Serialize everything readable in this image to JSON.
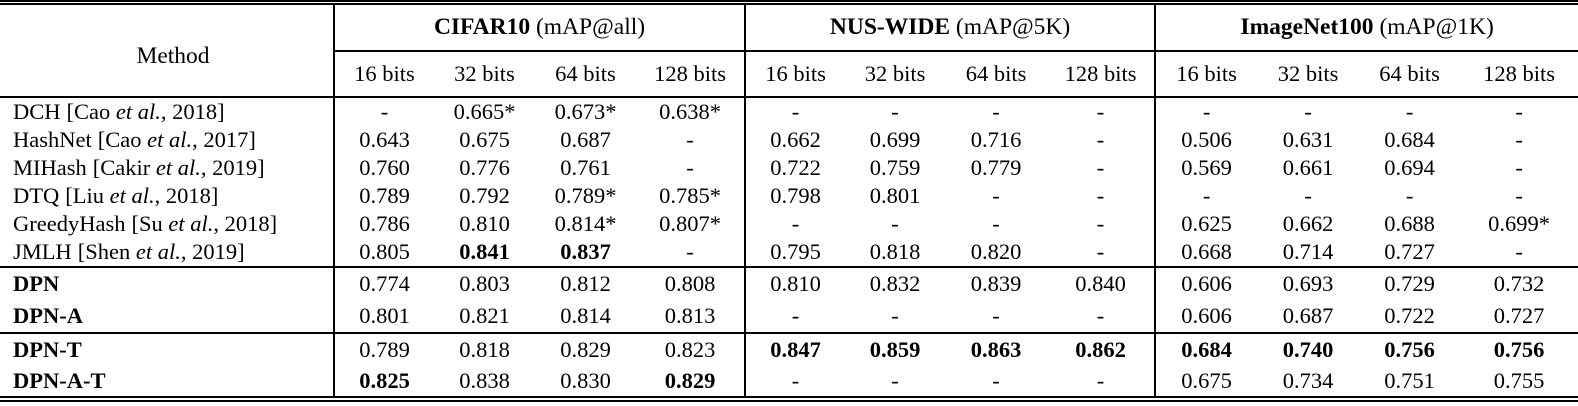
{
  "table": {
    "method_header": "Method",
    "groups": [
      {
        "dataset": "CIFAR10",
        "metric": " (mAP@all)"
      },
      {
        "dataset": "NUS-WIDE",
        "metric": " (mAP@5K)"
      },
      {
        "dataset": "ImageNet100",
        "metric": " (mAP@1K)"
      }
    ],
    "bit_labels": [
      "16 bits",
      "32 bits",
      "64 bits",
      "128 bits"
    ],
    "sections": [
      {
        "rows": [
          {
            "method_name": "DCH",
            "method_bold": false,
            "cite_open": "[Cao ",
            "cite_etal": "et al.",
            "cite_close": ", 2018]",
            "cells": [
              {
                "t": "-"
              },
              {
                "t": "0.665*"
              },
              {
                "t": "0.673*"
              },
              {
                "t": "0.638*"
              },
              {
                "t": "-"
              },
              {
                "t": "-"
              },
              {
                "t": "-"
              },
              {
                "t": "-"
              },
              {
                "t": "-"
              },
              {
                "t": "-"
              },
              {
                "t": "-"
              },
              {
                "t": "-"
              }
            ]
          },
          {
            "method_name": "HashNet",
            "method_bold": false,
            "cite_open": "[Cao ",
            "cite_etal": "et al.",
            "cite_close": ", 2017]",
            "cells": [
              {
                "t": "0.643"
              },
              {
                "t": "0.675"
              },
              {
                "t": "0.687"
              },
              {
                "t": "-"
              },
              {
                "t": "0.662"
              },
              {
                "t": "0.699"
              },
              {
                "t": "0.716"
              },
              {
                "t": "-"
              },
              {
                "t": "0.506"
              },
              {
                "t": "0.631"
              },
              {
                "t": "0.684"
              },
              {
                "t": "-"
              }
            ]
          },
          {
            "method_name": "MIHash",
            "method_bold": false,
            "cite_open": "[Cakir ",
            "cite_etal": "et al.",
            "cite_close": ", 2019]",
            "cells": [
              {
                "t": "0.760"
              },
              {
                "t": "0.776"
              },
              {
                "t": "0.761"
              },
              {
                "t": "-"
              },
              {
                "t": "0.722"
              },
              {
                "t": "0.759"
              },
              {
                "t": "0.779"
              },
              {
                "t": "-"
              },
              {
                "t": "0.569"
              },
              {
                "t": "0.661"
              },
              {
                "t": "0.694"
              },
              {
                "t": "-"
              }
            ]
          },
          {
            "method_name": "DTQ",
            "method_bold": false,
            "cite_open": "[Liu ",
            "cite_etal": "et al.",
            "cite_close": ", 2018]",
            "cells": [
              {
                "t": "0.789"
              },
              {
                "t": "0.792"
              },
              {
                "t": "0.789*"
              },
              {
                "t": "0.785*"
              },
              {
                "t": "0.798"
              },
              {
                "t": "0.801"
              },
              {
                "t": "-"
              },
              {
                "t": "-"
              },
              {
                "t": "-"
              },
              {
                "t": "-"
              },
              {
                "t": "-"
              },
              {
                "t": "-"
              }
            ]
          },
          {
            "method_name": "GreedyHash",
            "method_bold": false,
            "cite_open": "[Su ",
            "cite_etal": "et al.",
            "cite_close": ", 2018]",
            "cells": [
              {
                "t": "0.786"
              },
              {
                "t": "0.810"
              },
              {
                "t": "0.814*"
              },
              {
                "t": "0.807*"
              },
              {
                "t": "-"
              },
              {
                "t": "-"
              },
              {
                "t": "-"
              },
              {
                "t": "-"
              },
              {
                "t": "0.625"
              },
              {
                "t": "0.662"
              },
              {
                "t": "0.688"
              },
              {
                "t": "0.699*"
              }
            ]
          },
          {
            "method_name": "JMLH",
            "method_bold": false,
            "cite_open": "[Shen ",
            "cite_etal": "et al.",
            "cite_close": ", 2019]",
            "cells": [
              {
                "t": "0.805"
              },
              {
                "t": "0.841",
                "b": true
              },
              {
                "t": "0.837",
                "b": true
              },
              {
                "t": "-"
              },
              {
                "t": "0.795"
              },
              {
                "t": "0.818"
              },
              {
                "t": "0.820"
              },
              {
                "t": "-"
              },
              {
                "t": "0.668"
              },
              {
                "t": "0.714"
              },
              {
                "t": "0.727"
              },
              {
                "t": "-"
              }
            ]
          }
        ]
      },
      {
        "rows": [
          {
            "method_name": "DPN",
            "method_bold": true,
            "cite_open": "",
            "cite_etal": "",
            "cite_close": "",
            "cells": [
              {
                "t": "0.774"
              },
              {
                "t": "0.803"
              },
              {
                "t": "0.812"
              },
              {
                "t": "0.808"
              },
              {
                "t": "0.810"
              },
              {
                "t": "0.832"
              },
              {
                "t": "0.839"
              },
              {
                "t": "0.840"
              },
              {
                "t": "0.606"
              },
              {
                "t": "0.693"
              },
              {
                "t": "0.729"
              },
              {
                "t": "0.732"
              }
            ]
          },
          {
            "method_name": "DPN-A",
            "method_bold": true,
            "cite_open": "",
            "cite_etal": "",
            "cite_close": "",
            "cells": [
              {
                "t": "0.801"
              },
              {
                "t": "0.821"
              },
              {
                "t": "0.814"
              },
              {
                "t": "0.813"
              },
              {
                "t": "-"
              },
              {
                "t": "-"
              },
              {
                "t": "-"
              },
              {
                "t": "-"
              },
              {
                "t": "0.606"
              },
              {
                "t": "0.687"
              },
              {
                "t": "0.722"
              },
              {
                "t": "0.727"
              }
            ]
          }
        ]
      },
      {
        "rows": [
          {
            "method_name": "DPN-T",
            "method_bold": true,
            "cite_open": "",
            "cite_etal": "",
            "cite_close": "",
            "cells": [
              {
                "t": "0.789"
              },
              {
                "t": "0.818"
              },
              {
                "t": "0.829"
              },
              {
                "t": "0.823"
              },
              {
                "t": "0.847",
                "b": true
              },
              {
                "t": "0.859",
                "b": true
              },
              {
                "t": "0.863",
                "b": true
              },
              {
                "t": "0.862",
                "b": true
              },
              {
                "t": "0.684",
                "b": true
              },
              {
                "t": "0.740",
                "b": true
              },
              {
                "t": "0.756",
                "b": true
              },
              {
                "t": "0.756",
                "b": true
              }
            ]
          },
          {
            "method_name": "DPN-A-T",
            "method_bold": true,
            "cite_open": "",
            "cite_etal": "",
            "cite_close": "",
            "cells": [
              {
                "t": "0.825",
                "b": true
              },
              {
                "t": "0.838"
              },
              {
                "t": "0.830"
              },
              {
                "t": "0.829",
                "b": true
              },
              {
                "t": "-"
              },
              {
                "t": "-"
              },
              {
                "t": "-"
              },
              {
                "t": "-"
              },
              {
                "t": "0.675"
              },
              {
                "t": "0.734"
              },
              {
                "t": "0.751"
              },
              {
                "t": "0.755"
              }
            ]
          }
        ]
      }
    ]
  }
}
